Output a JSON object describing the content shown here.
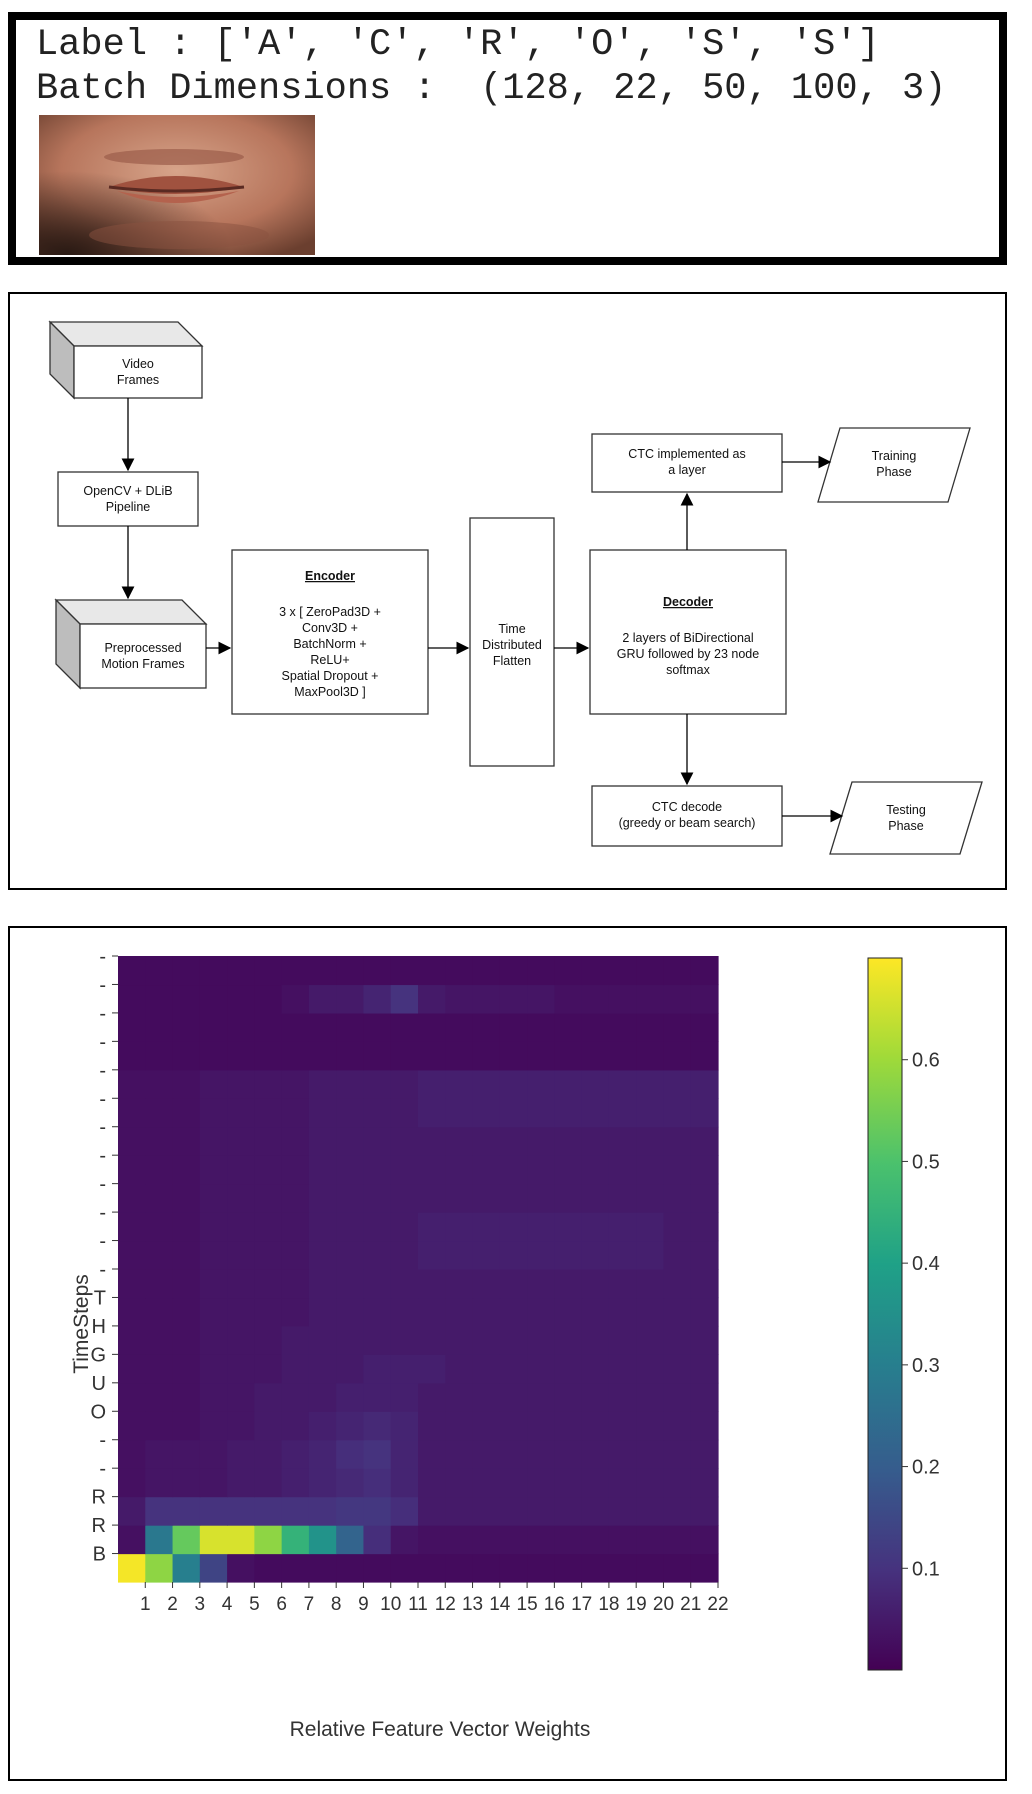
{
  "sample": {
    "label_line": "Label : ['A', 'C', 'R', 'O', 'S', 'S']",
    "batch_line": "Batch Dimensions :  (128, 22, 50, 100, 3)",
    "image_desc": "mouth-crop-image"
  },
  "architecture": {
    "video_frames": [
      "Video",
      "Frames"
    ],
    "pipeline": [
      "OpenCV + DLiB",
      "Pipeline"
    ],
    "preprocessed": [
      "Preprocessed",
      "Motion Frames"
    ],
    "encoder_title": "Encoder",
    "encoder_body": [
      "3 x [ ZeroPad3D +",
      "Conv3D +",
      "BatchNorm +",
      "ReLU+",
      "Spatial Dropout +",
      "MaxPool3D ]"
    ],
    "time_distributed": [
      "Time",
      "Distributed",
      "Flatten"
    ],
    "decoder_title": "Decoder",
    "decoder_body": [
      "2 layers of BiDirectional",
      "GRU followed by 23 node",
      "softmax"
    ],
    "ctc_layer": [
      "CTC implemented as",
      "a layer"
    ],
    "training": [
      "Training",
      "Phase"
    ],
    "ctc_decode": [
      "CTC decode",
      "(greedy or beam search)"
    ],
    "testing": [
      "Testing",
      "Phase"
    ]
  },
  "chart_data": {
    "type": "heatmap",
    "xlabel": "Relative Feature Vector Weights",
    "ylabel": "TimeSteps",
    "x_ticks": [
      "1",
      "2",
      "3",
      "4",
      "5",
      "6",
      "7",
      "8",
      "9",
      "10",
      "11",
      "12",
      "13",
      "14",
      "15",
      "16",
      "17",
      "18",
      "19",
      "20",
      "21",
      "22"
    ],
    "y_ticks_bottom_to_top": [
      "B",
      "R",
      "R",
      "-",
      "-",
      "O",
      "U",
      "G",
      "H",
      "T",
      "-",
      "-",
      "-",
      "-",
      "-",
      "-",
      "-",
      "-",
      "-",
      "-",
      "-",
      "-"
    ],
    "colorbar_ticks": [
      "0.1",
      "0.2",
      "0.3",
      "0.4",
      "0.5",
      "0.6"
    ],
    "colorbar_range": [
      0.0,
      0.7
    ],
    "colormap": "viridis",
    "rows_bottom_to_top": [
      [
        0.69,
        0.58,
        0.3,
        0.14,
        0.03,
        0.02,
        0.02,
        0.02,
        0.02,
        0.02,
        0.02,
        0.02,
        0.02,
        0.02,
        0.02,
        0.02,
        0.02,
        0.02,
        0.02,
        0.02,
        0.02,
        0.02
      ],
      [
        0.03,
        0.28,
        0.53,
        0.66,
        0.66,
        0.58,
        0.45,
        0.36,
        0.22,
        0.09,
        0.04,
        0.03,
        0.03,
        0.03,
        0.03,
        0.03,
        0.03,
        0.03,
        0.03,
        0.03,
        0.03,
        0.03
      ],
      [
        0.05,
        0.1,
        0.1,
        0.1,
        0.1,
        0.1,
        0.1,
        0.1,
        0.11,
        0.11,
        0.09,
        0.05,
        0.05,
        0.05,
        0.05,
        0.05,
        0.05,
        0.05,
        0.05,
        0.05,
        0.05,
        0.05
      ],
      [
        0.03,
        0.04,
        0.04,
        0.04,
        0.05,
        0.05,
        0.06,
        0.07,
        0.08,
        0.09,
        0.07,
        0.05,
        0.05,
        0.05,
        0.05,
        0.05,
        0.05,
        0.05,
        0.05,
        0.05,
        0.05,
        0.05
      ],
      [
        0.03,
        0.04,
        0.04,
        0.04,
        0.05,
        0.05,
        0.06,
        0.07,
        0.09,
        0.1,
        0.07,
        0.05,
        0.05,
        0.05,
        0.05,
        0.05,
        0.05,
        0.05,
        0.05,
        0.05,
        0.05,
        0.05
      ],
      [
        0.03,
        0.03,
        0.03,
        0.04,
        0.04,
        0.05,
        0.05,
        0.06,
        0.07,
        0.08,
        0.07,
        0.05,
        0.05,
        0.05,
        0.05,
        0.05,
        0.05,
        0.05,
        0.05,
        0.05,
        0.05,
        0.05
      ],
      [
        0.03,
        0.03,
        0.03,
        0.04,
        0.04,
        0.05,
        0.05,
        0.05,
        0.06,
        0.06,
        0.06,
        0.05,
        0.05,
        0.05,
        0.05,
        0.05,
        0.05,
        0.05,
        0.05,
        0.05,
        0.05,
        0.05
      ],
      [
        0.03,
        0.03,
        0.03,
        0.04,
        0.04,
        0.04,
        0.05,
        0.05,
        0.05,
        0.06,
        0.06,
        0.06,
        0.05,
        0.05,
        0.05,
        0.05,
        0.05,
        0.05,
        0.05,
        0.05,
        0.05,
        0.05
      ],
      [
        0.03,
        0.03,
        0.03,
        0.04,
        0.04,
        0.04,
        0.05,
        0.05,
        0.05,
        0.05,
        0.05,
        0.05,
        0.05,
        0.05,
        0.05,
        0.05,
        0.05,
        0.05,
        0.05,
        0.05,
        0.05,
        0.05
      ],
      [
        0.03,
        0.03,
        0.03,
        0.04,
        0.04,
        0.04,
        0.04,
        0.05,
        0.05,
        0.05,
        0.05,
        0.05,
        0.05,
        0.05,
        0.05,
        0.05,
        0.05,
        0.05,
        0.05,
        0.05,
        0.05,
        0.05
      ],
      [
        0.03,
        0.03,
        0.03,
        0.04,
        0.04,
        0.04,
        0.04,
        0.05,
        0.05,
        0.05,
        0.05,
        0.05,
        0.05,
        0.05,
        0.05,
        0.05,
        0.05,
        0.05,
        0.05,
        0.05,
        0.05,
        0.05
      ],
      [
        0.03,
        0.03,
        0.03,
        0.04,
        0.04,
        0.04,
        0.04,
        0.05,
        0.05,
        0.05,
        0.05,
        0.06,
        0.06,
        0.06,
        0.06,
        0.06,
        0.06,
        0.06,
        0.06,
        0.06,
        0.05,
        0.05
      ],
      [
        0.03,
        0.03,
        0.03,
        0.04,
        0.04,
        0.04,
        0.04,
        0.05,
        0.05,
        0.05,
        0.05,
        0.06,
        0.06,
        0.06,
        0.06,
        0.06,
        0.06,
        0.06,
        0.06,
        0.06,
        0.05,
        0.05
      ],
      [
        0.03,
        0.03,
        0.03,
        0.04,
        0.04,
        0.04,
        0.04,
        0.05,
        0.05,
        0.05,
        0.05,
        0.05,
        0.05,
        0.05,
        0.05,
        0.05,
        0.05,
        0.05,
        0.05,
        0.05,
        0.05,
        0.05
      ],
      [
        0.03,
        0.03,
        0.03,
        0.04,
        0.04,
        0.04,
        0.04,
        0.05,
        0.05,
        0.05,
        0.05,
        0.05,
        0.05,
        0.05,
        0.05,
        0.05,
        0.05,
        0.05,
        0.05,
        0.05,
        0.05,
        0.05
      ],
      [
        0.03,
        0.03,
        0.03,
        0.04,
        0.04,
        0.04,
        0.04,
        0.05,
        0.05,
        0.05,
        0.05,
        0.05,
        0.05,
        0.05,
        0.05,
        0.05,
        0.05,
        0.05,
        0.05,
        0.05,
        0.05,
        0.05
      ],
      [
        0.03,
        0.03,
        0.03,
        0.04,
        0.04,
        0.04,
        0.04,
        0.05,
        0.05,
        0.05,
        0.05,
        0.06,
        0.06,
        0.06,
        0.06,
        0.06,
        0.06,
        0.06,
        0.06,
        0.06,
        0.06,
        0.06
      ],
      [
        0.03,
        0.03,
        0.03,
        0.04,
        0.04,
        0.04,
        0.04,
        0.05,
        0.05,
        0.05,
        0.05,
        0.06,
        0.06,
        0.06,
        0.06,
        0.06,
        0.06,
        0.06,
        0.06,
        0.06,
        0.06,
        0.06
      ],
      [
        0.02,
        0.02,
        0.02,
        0.02,
        0.02,
        0.02,
        0.02,
        0.02,
        0.02,
        0.02,
        0.02,
        0.02,
        0.02,
        0.02,
        0.02,
        0.02,
        0.02,
        0.02,
        0.02,
        0.02,
        0.02,
        0.02
      ],
      [
        0.02,
        0.02,
        0.02,
        0.02,
        0.02,
        0.02,
        0.02,
        0.02,
        0.02,
        0.02,
        0.02,
        0.02,
        0.02,
        0.02,
        0.02,
        0.02,
        0.02,
        0.02,
        0.02,
        0.02,
        0.02,
        0.02
      ],
      [
        0.02,
        0.02,
        0.02,
        0.02,
        0.02,
        0.02,
        0.03,
        0.05,
        0.05,
        0.07,
        0.1,
        0.05,
        0.04,
        0.04,
        0.04,
        0.04,
        0.03,
        0.03,
        0.03,
        0.03,
        0.03,
        0.03
      ],
      [
        0.02,
        0.02,
        0.02,
        0.02,
        0.02,
        0.02,
        0.02,
        0.02,
        0.02,
        0.02,
        0.02,
        0.02,
        0.02,
        0.02,
        0.02,
        0.02,
        0.02,
        0.02,
        0.02,
        0.02,
        0.02,
        0.02
      ]
    ]
  }
}
